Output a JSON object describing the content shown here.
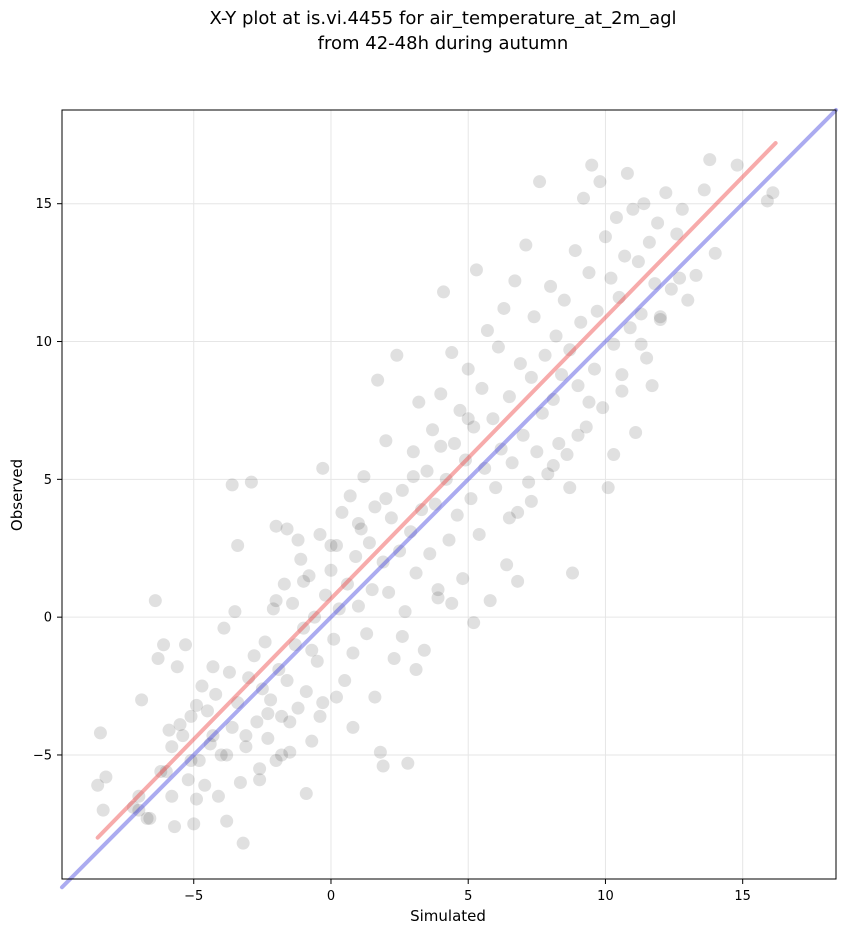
{
  "chart_data": {
    "type": "scatter",
    "title": "X-Y plot at is.vi.4455 for air_temperature_at_2m_agl\nfrom 42-48h during autumn",
    "xlabel": "Simulated",
    "ylabel": "Observed",
    "xlim": [
      -9.8,
      18.4
    ],
    "ylim": [
      -9.5,
      18.4
    ],
    "xticks": [
      -5,
      0,
      5,
      10,
      15
    ],
    "yticks": [
      -5,
      0,
      5,
      10,
      15
    ],
    "xtick_labels": [
      "−5",
      "0",
      "5",
      "10",
      "15"
    ],
    "ytick_labels": [
      "−5",
      "0",
      "5",
      "10",
      "15"
    ],
    "grid": true,
    "point_color": "#000000",
    "point_alpha": 0.12,
    "lines": [
      {
        "role": "fit",
        "color": "#ee4444",
        "x": [
          -8.5,
          16.2
        ],
        "y": [
          -8.0,
          17.2
        ]
      },
      {
        "role": "one-to-one",
        "color": "#4444dd",
        "x": [
          -9.8,
          18.4
        ],
        "y": [
          -9.8,
          18.4
        ]
      }
    ],
    "points": [
      [
        -8.5,
        -6.1
      ],
      [
        -8.4,
        -4.2
      ],
      [
        -8.2,
        -5.8
      ],
      [
        -8.3,
        -7.0
      ],
      [
        -7.2,
        -6.9
      ],
      [
        -7.0,
        -6.5
      ],
      [
        -6.9,
        -3.0
      ],
      [
        -6.6,
        -7.3
      ],
      [
        -6.4,
        0.6
      ],
      [
        -6.3,
        -1.5
      ],
      [
        -6.1,
        -1.0
      ],
      [
        -6.0,
        -5.6
      ],
      [
        -5.9,
        -4.1
      ],
      [
        -5.8,
        -4.7
      ],
      [
        -5.7,
        -7.6
      ],
      [
        -5.6,
        -1.8
      ],
      [
        -5.5,
        -3.9
      ],
      [
        -5.4,
        -4.3
      ],
      [
        -5.3,
        -1.0
      ],
      [
        -5.2,
        -5.9
      ],
      [
        -5.1,
        -3.6
      ],
      [
        -5.0,
        -7.5
      ],
      [
        -4.9,
        -3.2
      ],
      [
        -4.8,
        -5.2
      ],
      [
        -4.7,
        -2.5
      ],
      [
        -4.6,
        -6.1
      ],
      [
        -4.5,
        -3.4
      ],
      [
        -4.4,
        -4.6
      ],
      [
        -4.3,
        -1.8
      ],
      [
        -4.2,
        -2.8
      ],
      [
        -4.1,
        -6.5
      ],
      [
        -4.0,
        -5.0
      ],
      [
        -3.9,
        -0.4
      ],
      [
        -3.8,
        -7.4
      ],
      [
        -3.7,
        -2.0
      ],
      [
        -3.6,
        -4.0
      ],
      [
        -3.5,
        0.2
      ],
      [
        -3.4,
        -3.1
      ],
      [
        -3.3,
        -6.0
      ],
      [
        -3.2,
        -8.2
      ],
      [
        -3.1,
        -4.7
      ],
      [
        -3.0,
        -2.2
      ],
      [
        -2.9,
        4.9
      ],
      [
        -2.8,
        -1.4
      ],
      [
        -2.7,
        -3.8
      ],
      [
        -2.6,
        -5.5
      ],
      [
        -2.5,
        -2.6
      ],
      [
        -2.4,
        -0.9
      ],
      [
        -2.3,
        -4.4
      ],
      [
        -2.2,
        -3.0
      ],
      [
        -2.1,
        0.3
      ],
      [
        -2.0,
        -5.2
      ],
      [
        -1.9,
        -1.9
      ],
      [
        -1.8,
        -3.6
      ],
      [
        -1.7,
        1.2
      ],
      [
        -1.6,
        -2.3
      ],
      [
        -1.5,
        -4.9
      ],
      [
        -1.4,
        0.5
      ],
      [
        -1.3,
        -1.0
      ],
      [
        -1.2,
        -3.3
      ],
      [
        -1.1,
        2.1
      ],
      [
        -1.0,
        -0.4
      ],
      [
        -0.9,
        -2.7
      ],
      [
        -0.8,
        1.5
      ],
      [
        -0.7,
        -4.5
      ],
      [
        -0.6,
        0.0
      ],
      [
        -0.5,
        -1.6
      ],
      [
        -0.4,
        3.0
      ],
      [
        -0.3,
        -3.1
      ],
      [
        -0.2,
        0.8
      ],
      [
        -3.6,
        4.8
      ],
      [
        -3.4,
        2.6
      ],
      [
        -2.0,
        3.3
      ],
      [
        -1.6,
        3.2
      ],
      [
        -1.2,
        2.8
      ],
      [
        -0.7,
        -1.2
      ],
      [
        -0.3,
        5.4
      ],
      [
        0.0,
        1.7
      ],
      [
        0.1,
        -0.8
      ],
      [
        0.2,
        2.6
      ],
      [
        0.3,
        0.3
      ],
      [
        0.4,
        3.8
      ],
      [
        0.5,
        -2.3
      ],
      [
        0.6,
        1.2
      ],
      [
        0.7,
        4.4
      ],
      [
        0.8,
        -1.3
      ],
      [
        0.9,
        2.2
      ],
      [
        1.0,
        0.4
      ],
      [
        1.1,
        3.2
      ],
      [
        1.2,
        5.1
      ],
      [
        1.3,
        -0.6
      ],
      [
        1.4,
        2.7
      ],
      [
        1.5,
        1.0
      ],
      [
        1.6,
        4.0
      ],
      [
        1.7,
        8.6
      ],
      [
        1.8,
        -4.9
      ],
      [
        1.9,
        2.0
      ],
      [
        2.0,
        6.4
      ],
      [
        2.1,
        0.9
      ],
      [
        2.2,
        3.6
      ],
      [
        2.3,
        -1.5
      ],
      [
        2.4,
        9.5
      ],
      [
        2.5,
        2.4
      ],
      [
        2.6,
        4.6
      ],
      [
        2.7,
        0.2
      ],
      [
        2.8,
        -5.3
      ],
      [
        2.9,
        3.1
      ],
      [
        3.0,
        6.0
      ],
      [
        3.1,
        1.6
      ],
      [
        3.2,
        7.8
      ],
      [
        3.3,
        3.9
      ],
      [
        3.4,
        -1.2
      ],
      [
        3.5,
        5.3
      ],
      [
        3.6,
        2.3
      ],
      [
        3.7,
        6.8
      ],
      [
        3.8,
        4.1
      ],
      [
        3.9,
        0.7
      ],
      [
        4.0,
        8.1
      ],
      [
        4.1,
        11.8
      ],
      [
        4.2,
        5.0
      ],
      [
        4.3,
        2.8
      ],
      [
        4.4,
        9.6
      ],
      [
        4.5,
        6.3
      ],
      [
        4.6,
        3.7
      ],
      [
        4.7,
        7.5
      ],
      [
        4.8,
        1.4
      ],
      [
        4.9,
        5.7
      ],
      [
        5.0,
        9.0
      ],
      [
        5.1,
        4.3
      ],
      [
        5.2,
        6.9
      ],
      [
        5.3,
        12.6
      ],
      [
        5.4,
        3.0
      ],
      [
        5.5,
        8.3
      ],
      [
        5.6,
        5.4
      ],
      [
        5.7,
        10.4
      ],
      [
        5.8,
        0.6
      ],
      [
        5.9,
        7.2
      ],
      [
        6.0,
        4.7
      ],
      [
        6.1,
        9.8
      ],
      [
        6.2,
        6.1
      ],
      [
        6.3,
        11.2
      ],
      [
        6.4,
        1.9
      ],
      [
        6.5,
        8.0
      ],
      [
        6.6,
        5.6
      ],
      [
        6.7,
        12.2
      ],
      [
        6.8,
        3.8
      ],
      [
        6.9,
        9.2
      ],
      [
        7.0,
        6.6
      ],
      [
        7.1,
        13.5
      ],
      [
        7.2,
        4.9
      ],
      [
        7.3,
        8.7
      ],
      [
        7.4,
        10.9
      ],
      [
        7.5,
        6.0
      ],
      [
        7.6,
        15.8
      ],
      [
        7.7,
        7.4
      ],
      [
        7.8,
        9.5
      ],
      [
        7.9,
        5.2
      ],
      [
        8.0,
        12.0
      ],
      [
        8.1,
        7.9
      ],
      [
        8.2,
        10.2
      ],
      [
        8.3,
        6.3
      ],
      [
        8.4,
        8.8
      ],
      [
        8.5,
        11.5
      ],
      [
        8.6,
        5.9
      ],
      [
        8.7,
        9.7
      ],
      [
        8.8,
        1.6
      ],
      [
        8.9,
        13.3
      ],
      [
        9.0,
        8.4
      ],
      [
        9.1,
        10.7
      ],
      [
        9.2,
        15.2
      ],
      [
        9.3,
        6.9
      ],
      [
        9.4,
        12.5
      ],
      [
        9.5,
        16.4
      ],
      [
        9.6,
        9.0
      ],
      [
        9.7,
        11.1
      ],
      [
        9.8,
        15.8
      ],
      [
        9.9,
        7.6
      ],
      [
        10.0,
        13.8
      ],
      [
        10.1,
        4.7
      ],
      [
        10.2,
        12.3
      ],
      [
        10.3,
        9.9
      ],
      [
        10.4,
        14.5
      ],
      [
        10.5,
        11.6
      ],
      [
        10.6,
        8.2
      ],
      [
        10.7,
        13.1
      ],
      [
        10.8,
        16.1
      ],
      [
        10.9,
        10.5
      ],
      [
        11.0,
        14.8
      ],
      [
        11.1,
        6.7
      ],
      [
        11.2,
        12.9
      ],
      [
        11.3,
        11.0
      ],
      [
        11.4,
        15.0
      ],
      [
        11.5,
        9.4
      ],
      [
        11.6,
        13.6
      ],
      [
        11.7,
        8.4
      ],
      [
        11.8,
        12.1
      ],
      [
        11.9,
        14.3
      ],
      [
        12.0,
        10.8
      ],
      [
        12.2,
        15.4
      ],
      [
        12.4,
        11.9
      ],
      [
        12.6,
        13.9
      ],
      [
        12.8,
        14.8
      ],
      [
        13.0,
        11.5
      ],
      [
        13.3,
        12.4
      ],
      [
        13.6,
        15.5
      ],
      [
        13.8,
        16.6
      ],
      [
        14.0,
        13.2
      ],
      [
        14.8,
        16.4
      ],
      [
        15.9,
        15.1
      ],
      [
        16.1,
        15.4
      ],
      [
        10.3,
        5.9
      ],
      [
        9.0,
        6.6
      ],
      [
        8.7,
        4.7
      ],
      [
        6.8,
        1.3
      ],
      [
        5.2,
        -0.2
      ],
      [
        4.4,
        0.5
      ],
      [
        3.9,
        1.0
      ],
      [
        1.9,
        -5.4
      ],
      [
        0.8,
        -4.0
      ],
      [
        -0.9,
        -6.4
      ],
      [
        -1.8,
        -5.0
      ],
      [
        -2.6,
        -5.9
      ],
      [
        -3.8,
        -5.0
      ],
      [
        -4.9,
        -6.6
      ],
      [
        2.6,
        -0.7
      ],
      [
        3.1,
        -1.9
      ],
      [
        1.6,
        -2.9
      ],
      [
        0.2,
        -2.9
      ],
      [
        -0.4,
        -3.6
      ],
      [
        -1.5,
        -3.8
      ],
      [
        -2.3,
        -3.5
      ],
      [
        -3.1,
        -4.3
      ],
      [
        -4.3,
        -4.3
      ],
      [
        -5.1,
        -5.2
      ],
      [
        -6.2,
        -5.6
      ],
      [
        -7.0,
        -7.0
      ],
      [
        -6.7,
        -7.3
      ],
      [
        -5.8,
        -6.5
      ],
      [
        6.5,
        3.6
      ],
      [
        7.3,
        4.2
      ],
      [
        8.1,
        5.5
      ],
      [
        9.4,
        7.8
      ],
      [
        10.6,
        8.8
      ],
      [
        11.3,
        9.9
      ],
      [
        12.0,
        10.9
      ],
      [
        12.7,
        12.3
      ],
      [
        5.0,
        7.2
      ],
      [
        4.0,
        6.2
      ],
      [
        3.0,
        5.1
      ],
      [
        2.0,
        4.3
      ],
      [
        1.0,
        3.4
      ],
      [
        0.0,
        2.6
      ],
      [
        -1.0,
        1.3
      ],
      [
        -2.0,
        0.6
      ]
    ]
  }
}
